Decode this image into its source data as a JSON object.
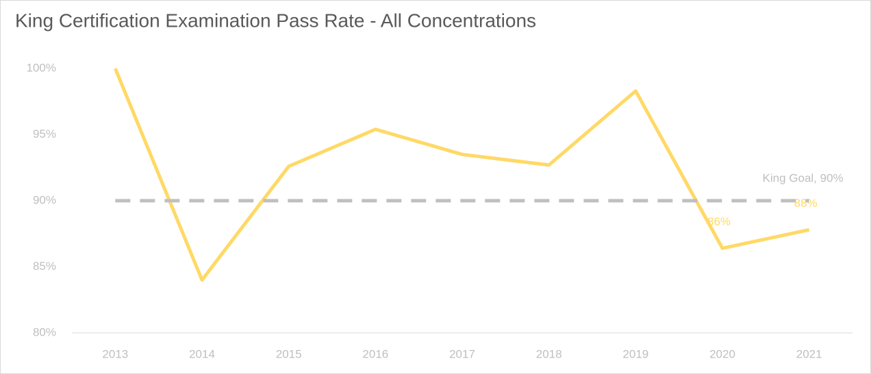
{
  "chart_data": {
    "type": "line",
    "title": "King Certification Examination Pass Rate - All Concentrations",
    "categories": [
      "2013",
      "2014",
      "2015",
      "2016",
      "2017",
      "2018",
      "2019",
      "2020",
      "2021"
    ],
    "series": [
      {
        "name": "Pass Rate",
        "color": "#ffd966",
        "values": [
          100,
          84.0,
          92.6,
          95.4,
          93.5,
          92.7,
          98.3,
          86.4,
          87.8
        ],
        "value_labels": [
          null,
          null,
          null,
          null,
          null,
          null,
          null,
          "86%",
          "88%"
        ]
      },
      {
        "name": "King Goal",
        "color": "#bfbfbf",
        "dashed": true,
        "values": [
          90,
          90,
          90,
          90,
          90,
          90,
          90,
          90,
          90
        ]
      }
    ],
    "annotations": [
      "King Goal, 90%"
    ],
    "ylim": [
      80,
      100
    ],
    "yticks": [
      {
        "value": 80,
        "label": "80%"
      },
      {
        "value": 85,
        "label": "85%"
      },
      {
        "value": 90,
        "label": "90%"
      },
      {
        "value": 95,
        "label": "95%"
      },
      {
        "value": 100,
        "label": "100%"
      }
    ],
    "grid": false
  }
}
